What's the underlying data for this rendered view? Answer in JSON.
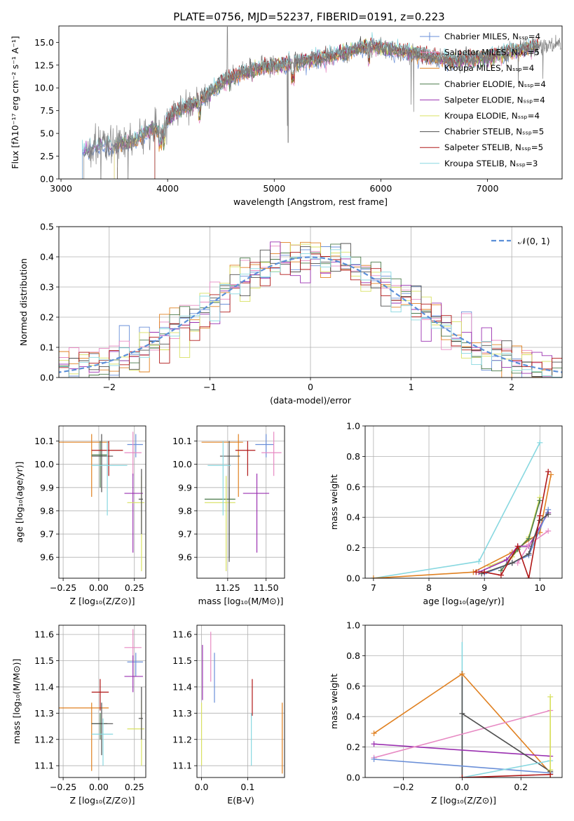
{
  "figure_title": "PLATE=0756, MJD=52237, FIBERID=0191, z=0.223",
  "colors": {
    "Chabrier MILES": "#6a8fd8",
    "Salpeter MILES": "#e78ac3",
    "Kroupa MILES": "#e08020",
    "Chabrier ELODIE": "#4a7a4a",
    "Salpeter ELODIE": "#9a30b0",
    "Kroupa ELODIE": "#d8e060",
    "Chabrier STELIB": "#505050",
    "Salpeter STELIB": "#b01818",
    "Kroupa STELIB": "#88d8e0",
    "data": "#808080",
    "normal_curve": "#5b8fd8"
  },
  "chart_data": [
    {
      "id": "spectrum",
      "type": "line",
      "title": "PLATE=0756, MJD=52237, FIBERID=0191, z=0.223",
      "xlabel": "wavelength [Angstrom, rest frame]",
      "ylabel": "Flux [fλ10⁻¹⁷ erg cm⁻² s⁻¹ A⁻¹]",
      "xlim": [
        2980,
        7700
      ],
      "ylim": [
        0,
        16.8
      ],
      "xticks": [
        3000,
        4000,
        5000,
        6000,
        7000
      ],
      "yticks": [
        0.0,
        2.5,
        5.0,
        7.5,
        10.0,
        12.5,
        15.0
      ],
      "legend_position": "right",
      "legend": [
        {
          "label": "Chabrier MILES, Nₛₛₚ=4",
          "color": "#6a8fd8",
          "marker": "+"
        },
        {
          "label": "Salpeter MILES, Nₛₛₚ=5",
          "color": "#e78ac3"
        },
        {
          "label": "Kroupa MILES, Nₛₛₚ=4",
          "color": "#e08020"
        },
        {
          "label": "Chabrier ELODIE, Nₛₛₚ=4",
          "color": "#4a7a4a"
        },
        {
          "label": "Salpeter ELODIE, Nₛₛₚ=4",
          "color": "#9a30b0"
        },
        {
          "label": "Kroupa ELODIE, Nₛₛₚ=4",
          "color": "#d8e060"
        },
        {
          "label": "Chabrier STELIB, Nₛₛₚ=5",
          "color": "#505050"
        },
        {
          "label": "Salpeter STELIB, Nₛₛₚ=5",
          "color": "#b01818"
        },
        {
          "label": "Kroupa STELIB, Nₛₛₚ=3",
          "color": "#88d8e0"
        }
      ],
      "continuum": {
        "x": [
          3200,
          3300,
          3500,
          3700,
          3850,
          3950,
          4000,
          4100,
          4300,
          4500,
          4700,
          4900,
          5100,
          5300,
          5500,
          5700,
          5900,
          6100,
          6300,
          6500,
          6700,
          6900,
          7100,
          7300,
          7500
        ],
        "y": [
          3.0,
          3.4,
          3.7,
          4.3,
          5.5,
          5.3,
          6.5,
          7.5,
          8.5,
          10.6,
          11.6,
          12.3,
          12.6,
          13.0,
          13.4,
          14.0,
          14.6,
          14.2,
          13.8,
          13.3,
          13.0,
          13.2,
          13.6,
          14.2,
          14.6
        ]
      },
      "data_start": 3215,
      "model_starts": [
        3200,
        3500,
        3530,
        3880
      ]
    },
    {
      "id": "residuals",
      "type": "line",
      "xlabel": "(data-model)/error",
      "ylabel": "Normed distribution",
      "xlim": [
        -2.5,
        2.5
      ],
      "ylim": [
        0,
        0.5
      ],
      "xticks": [
        -2,
        -1,
        0,
        1,
        2
      ],
      "yticks": [
        0.0,
        0.1,
        0.2,
        0.3,
        0.4,
        0.5
      ],
      "legend": [
        {
          "label": "𝒩(0, 1)",
          "color": "#5b8fd8",
          "style": "dashed"
        }
      ],
      "legend_position": "top-right",
      "grid": true,
      "curve": "normal pdf, mean 0, sigma 1",
      "histogram_bin_width": 0.1
    },
    {
      "id": "Z_age",
      "type": "scatter",
      "xlabel": "Z [log₁₀(Z/Z⊙)]",
      "ylabel": "age  [log₁₀(age/yr)]",
      "xlim": [
        -0.28,
        0.33
      ],
      "ylim": [
        9.51,
        10.165
      ],
      "xticks": [
        -0.25,
        0.0,
        0.25
      ],
      "xtick_labels": [
        "−0.25",
        "0.00",
        "0.25"
      ],
      "yticks": [
        9.6,
        9.7,
        9.8,
        9.9,
        10.0,
        10.1
      ],
      "grid": true,
      "points": [
        {
          "c": "#6a8fd8",
          "x": 0.26,
          "y": 10.085,
          "xlo": 0.2,
          "xhi": 0.31,
          "ylo": 10.03,
          "yhi": 10.13
        },
        {
          "c": "#e78ac3",
          "x": 0.24,
          "y": 10.05,
          "xlo": 0.18,
          "xhi": 0.3,
          "ylo": 9.95,
          "yhi": 10.14
        },
        {
          "c": "#e08020",
          "x": -0.05,
          "y": 10.095,
          "xlo": -0.28,
          "xhi": 0.07,
          "ylo": 9.86,
          "yhi": 10.13
        },
        {
          "c": "#4a7a4a",
          "x": 0.01,
          "y": 10.04,
          "xlo": -0.05,
          "xhi": 0.06,
          "ylo": 9.9,
          "yhi": 10.1
        },
        {
          "c": "#9a30b0",
          "x": 0.24,
          "y": 9.875,
          "xlo": 0.18,
          "xhi": 0.31,
          "ylo": 9.62,
          "yhi": 9.96
        },
        {
          "c": "#d8e060",
          "x": 0.3,
          "y": 9.835,
          "xlo": 0.2,
          "xhi": 0.32,
          "ylo": 9.54,
          "yhi": 9.95
        },
        {
          "c": "#505050",
          "x": 0.02,
          "y": 10.035,
          "xlo": -0.05,
          "xhi": 0.1,
          "ylo": 9.88,
          "yhi": 10.13
        },
        {
          "c": "#b01818",
          "x": 0.07,
          "y": 10.06,
          "xlo": -0.05,
          "xhi": 0.17,
          "ylo": 9.95,
          "yhi": 10.1
        },
        {
          "c": "#88d8e0",
          "x": 0.06,
          "y": 9.995,
          "xlo": -0.05,
          "xhi": 0.2,
          "ylo": 9.78,
          "yhi": 10.1
        },
        {
          "c": "#505050",
          "x": 0.3,
          "y": 9.85,
          "xlo": 0.28,
          "xhi": 0.31,
          "ylo": 9.7,
          "yhi": 9.98
        }
      ]
    },
    {
      "id": "mass_age",
      "type": "scatter",
      "xlabel": "mass [log₁₀(M/M⊙)]",
      "ylabel": "",
      "xlim": [
        11.05,
        11.62
      ],
      "ylim": [
        9.51,
        10.165
      ],
      "xticks": [
        11.25,
        11.5
      ],
      "xtick_labels": [
        "11.25",
        "11.50"
      ],
      "yticks": [
        9.6,
        9.7,
        9.8,
        9.9,
        10.0,
        10.1
      ],
      "grid": true,
      "points": [
        {
          "c": "#6a8fd8",
          "x": 11.5,
          "y": 10.085,
          "xlo": 11.43,
          "xhi": 11.55,
          "ylo": 10.03,
          "yhi": 10.13
        },
        {
          "c": "#e78ac3",
          "x": 11.55,
          "y": 10.05,
          "xlo": 11.47,
          "xhi": 11.6,
          "ylo": 9.95,
          "yhi": 10.14
        },
        {
          "c": "#e08020",
          "x": 11.32,
          "y": 10.095,
          "xlo": 11.08,
          "xhi": 11.35,
          "ylo": 9.86,
          "yhi": 10.13
        },
        {
          "c": "#4a7a4a",
          "x": 11.26,
          "y": 9.85,
          "xlo": 11.1,
          "xhi": 11.3,
          "ylo": 9.6,
          "yhi": 9.9
        },
        {
          "c": "#9a30b0",
          "x": 11.44,
          "y": 9.875,
          "xlo": 11.35,
          "xhi": 11.52,
          "ylo": 9.62,
          "yhi": 9.96
        },
        {
          "c": "#d8e060",
          "x": 11.24,
          "y": 9.835,
          "xlo": 11.1,
          "xhi": 11.3,
          "ylo": 9.54,
          "yhi": 9.95
        },
        {
          "c": "#505050",
          "x": 11.26,
          "y": 10.035,
          "xlo": 11.2,
          "xhi": 11.33,
          "ylo": 9.58,
          "yhi": 10.1
        },
        {
          "c": "#b01818",
          "x": 11.38,
          "y": 10.06,
          "xlo": 11.3,
          "xhi": 11.43,
          "ylo": 9.95,
          "yhi": 10.1
        },
        {
          "c": "#88d8e0",
          "x": 11.22,
          "y": 9.995,
          "xlo": 11.12,
          "xhi": 11.27,
          "ylo": 9.78,
          "yhi": 10.1
        }
      ]
    },
    {
      "id": "age_massweight",
      "type": "line",
      "xlabel": "age  [log₁₀(age/yr)]",
      "ylabel": "mass weight",
      "xlim": [
        6.85,
        10.4
      ],
      "ylim": [
        0,
        1.0
      ],
      "xticks": [
        7,
        8,
        9,
        10
      ],
      "yticks": [
        0.0,
        0.2,
        0.4,
        0.6,
        0.8,
        1.0
      ],
      "grid": true,
      "series": [
        {
          "c": "#88d8e0",
          "x": [
            7.0,
            8.9,
            10.0
          ],
          "y": [
            0.0,
            0.11,
            0.89
          ]
        },
        {
          "c": "#e08020",
          "x": [
            7.0,
            8.8,
            9.5,
            10.0,
            10.2
          ],
          "y": [
            0.0,
            0.04,
            0.17,
            0.3,
            0.68
          ]
        },
        {
          "c": "#d8e060",
          "x": [
            9.1,
            9.5,
            9.8,
            10.0
          ],
          "y": [
            0.08,
            0.14,
            0.27,
            0.53
          ]
        },
        {
          "c": "#4a7a4a",
          "x": [
            9.3,
            9.6,
            9.8,
            10.0
          ],
          "y": [
            0.05,
            0.19,
            0.26,
            0.51
          ]
        },
        {
          "c": "#9a30b0",
          "x": [
            8.9,
            9.4,
            9.6,
            9.8,
            10.15
          ],
          "y": [
            0.04,
            0.12,
            0.21,
            0.21,
            0.43
          ]
        },
        {
          "c": "#6a8fd8",
          "x": [
            9.0,
            9.5,
            9.8,
            10.15
          ],
          "y": [
            0.03,
            0.1,
            0.15,
            0.45
          ]
        },
        {
          "c": "#e78ac3",
          "x": [
            9.6,
            9.8,
            10.15
          ],
          "y": [
            0.1,
            0.22,
            0.31
          ]
        },
        {
          "c": "#505050",
          "x": [
            8.95,
            9.5,
            9.8,
            10.0,
            10.15
          ],
          "y": [
            0.03,
            0.1,
            0.16,
            0.38,
            0.42
          ]
        },
        {
          "c": "#b01818",
          "x": [
            8.85,
            9.0,
            9.3,
            9.6,
            9.8,
            10.0,
            10.15
          ],
          "y": [
            0.04,
            0.04,
            0.02,
            0.21,
            0.0,
            0.41,
            0.7
          ]
        }
      ]
    },
    {
      "id": "Z_mass",
      "type": "scatter",
      "xlabel": "Z [log₁₀(Z/Z⊙)]",
      "ylabel": "mass [log₁₀(M/M⊙)]",
      "xlim": [
        -0.28,
        0.33
      ],
      "ylim": [
        11.055,
        11.635
      ],
      "xticks": [
        -0.25,
        0.0,
        0.25
      ],
      "xtick_labels": [
        "−0.25",
        "0.00",
        "0.25"
      ],
      "yticks": [
        11.1,
        11.2,
        11.3,
        11.4,
        11.5,
        11.6
      ],
      "grid": true,
      "points": [
        {
          "c": "#6a8fd8",
          "x": 0.26,
          "y": 11.495,
          "xlo": 0.2,
          "xhi": 0.31,
          "ylo": 11.44,
          "yhi": 11.53
        },
        {
          "c": "#e78ac3",
          "x": 0.24,
          "y": 11.55,
          "xlo": 0.18,
          "xhi": 0.3,
          "ylo": 11.5,
          "yhi": 11.62
        },
        {
          "c": "#e08020",
          "x": -0.05,
          "y": 11.32,
          "xlo": -0.28,
          "xhi": 0.07,
          "ylo": 11.08,
          "yhi": 11.34
        },
        {
          "c": "#4a7a4a",
          "x": 0.01,
          "y": 11.26,
          "xlo": -0.05,
          "xhi": 0.06,
          "ylo": 11.2,
          "yhi": 11.3
        },
        {
          "c": "#9a30b0",
          "x": 0.24,
          "y": 11.44,
          "xlo": 0.18,
          "xhi": 0.31,
          "ylo": 11.38,
          "yhi": 11.52
        },
        {
          "c": "#d8e060",
          "x": 0.3,
          "y": 11.24,
          "xlo": 0.2,
          "xhi": 0.32,
          "ylo": 11.1,
          "yhi": 11.35
        },
        {
          "c": "#505050",
          "x": 0.02,
          "y": 11.26,
          "xlo": -0.05,
          "xhi": 0.1,
          "ylo": 11.14,
          "yhi": 11.34
        },
        {
          "c": "#b01818",
          "x": 0.01,
          "y": 11.38,
          "xlo": -0.05,
          "xhi": 0.07,
          "ylo": 11.31,
          "yhi": 11.43
        },
        {
          "c": "#88d8e0",
          "x": 0.03,
          "y": 11.22,
          "xlo": -0.05,
          "xhi": 0.1,
          "ylo": 11.1,
          "yhi": 11.28
        },
        {
          "c": "#505050",
          "x": 0.3,
          "y": 11.28,
          "xlo": 0.28,
          "xhi": 0.31,
          "ylo": 11.2,
          "yhi": 11.4
        }
      ]
    },
    {
      "id": "ebv_mass",
      "type": "scatter",
      "xlabel": "E(B-V)",
      "ylabel": "",
      "xlim": [
        -0.01,
        0.18
      ],
      "ylim": [
        11.055,
        11.635
      ],
      "xticks": [
        0.0,
        0.1
      ],
      "xtick_labels": [
        "0.0",
        "0.1"
      ],
      "yticks": [
        11.1,
        11.2,
        11.3,
        11.4,
        11.5,
        11.6
      ],
      "grid": true,
      "points": [
        {
          "c": "#6a8fd8",
          "x": 0.028,
          "y": 11.44,
          "xlo": 0.028,
          "xhi": 0.028,
          "ylo": 11.34,
          "yhi": 11.53
        },
        {
          "c": "#e78ac3",
          "x": 0.02,
          "y": 11.52,
          "xlo": 0.02,
          "xhi": 0.02,
          "ylo": 11.42,
          "yhi": 11.61
        },
        {
          "c": "#e08020",
          "x": 0.175,
          "y": 11.2,
          "xlo": 0.175,
          "xhi": 0.175,
          "ylo": 11.07,
          "yhi": 11.34
        },
        {
          "c": "#9a30b0",
          "x": 0.002,
          "y": 11.45,
          "xlo": 0.002,
          "xhi": 0.002,
          "ylo": 11.35,
          "yhi": 11.56
        },
        {
          "c": "#d8e060",
          "x": 0.0,
          "y": 11.2,
          "xlo": 0.0,
          "xhi": 0.0,
          "ylo": 11.1,
          "yhi": 11.34
        },
        {
          "c": "#b01818",
          "x": 0.11,
          "y": 11.36,
          "xlo": 0.11,
          "xhi": 0.11,
          "ylo": 11.29,
          "yhi": 11.43
        },
        {
          "c": "#88d8e0",
          "x": 0.108,
          "y": 11.2,
          "xlo": 0.108,
          "xhi": 0.108,
          "ylo": 11.1,
          "yhi": 11.3
        }
      ]
    },
    {
      "id": "Z_massweight",
      "type": "line",
      "xlabel": "Z [log₁₀(Z/Z⊙)]",
      "ylabel": "mass weight",
      "xlim": [
        -0.33,
        0.34
      ],
      "ylim": [
        0,
        1.0
      ],
      "xticks": [
        -0.2,
        0.0,
        0.2
      ],
      "xtick_labels": [
        "−0.2",
        "0.0",
        "0.2"
      ],
      "yticks": [
        0.0,
        0.2,
        0.4,
        0.6,
        0.8,
        1.0
      ],
      "grid": true,
      "series": [
        {
          "c": "#e08020",
          "x": [
            -0.3,
            0.0,
            0.3
          ],
          "y": [
            0.29,
            0.68,
            0.03
          ]
        },
        {
          "c": "#9a30b0",
          "x": [
            -0.3,
            0.3
          ],
          "y": [
            0.22,
            0.14
          ]
        },
        {
          "c": "#e78ac3",
          "x": [
            -0.3,
            0.3
          ],
          "y": [
            0.13,
            0.44
          ]
        },
        {
          "c": "#6a8fd8",
          "x": [
            -0.3,
            0.3
          ],
          "y": [
            0.12,
            0.03
          ]
        },
        {
          "c": "#505050",
          "x": [
            0.0,
            0.3
          ],
          "y": [
            0.42,
            0.04
          ]
        },
        {
          "c": "#88d8e0",
          "x": [
            0.0,
            0.3
          ],
          "y": [
            0.0,
            0.11
          ]
        },
        {
          "c": "#b01818",
          "x": [
            0.0,
            0.3
          ],
          "y": [
            0.0,
            0.02
          ]
        },
        {
          "c": "#d8e060",
          "x": [
            0.3,
            0.3
          ],
          "y": [
            0.05,
            0.53
          ]
        }
      ],
      "vertical_ticks": [
        {
          "c": "#88d8e0",
          "x": 0.0,
          "ylo": 0.0,
          "yhi": 0.89
        },
        {
          "c": "#505050",
          "x": 0.0,
          "ylo": 0.0,
          "yhi": 0.7
        },
        {
          "c": "#d8e060",
          "x": 0.3,
          "ylo": 0.0,
          "yhi": 0.53
        },
        {
          "c": "#e08020",
          "x": 0.3,
          "ylo": 0.0,
          "yhi": 0.31
        }
      ]
    }
  ]
}
